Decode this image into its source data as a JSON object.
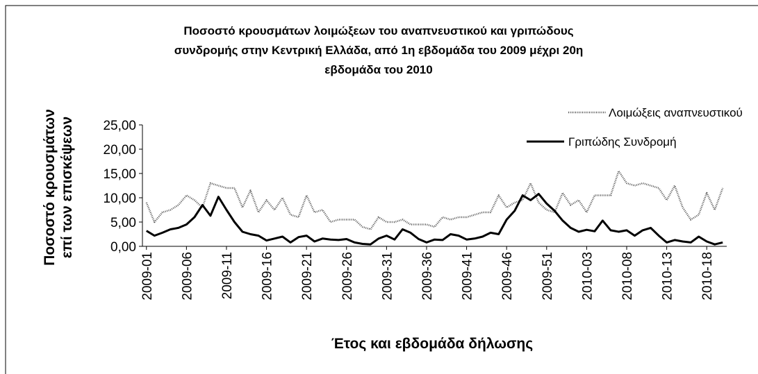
{
  "chart_data": {
    "type": "line",
    "title": [
      "Ποσοστό κρουσμάτων λοιμώξεων του αναπνευστικού και γριπώδους",
      "συνδρομής στην Κεντρική Ελλάδα, από 1η εβδομάδα του 2009 μέχρι 20η",
      "εβδομάδα του 2010"
    ],
    "y_label": [
      "Ποσοστό κρουσμάτων",
      "επί των επισκέψεων"
    ],
    "x_label": "Έτος και εβδομάδα δήλωσης",
    "categories": [
      "2009-01",
      null,
      null,
      null,
      null,
      "2009-06",
      null,
      null,
      null,
      null,
      "2009-11",
      null,
      null,
      null,
      null,
      "2009-16",
      null,
      null,
      null,
      null,
      "2009-21",
      null,
      null,
      null,
      null,
      "2009-26",
      null,
      null,
      null,
      null,
      "2009-31",
      null,
      null,
      null,
      null,
      "2009-36",
      null,
      null,
      null,
      null,
      "2009-41",
      null,
      null,
      null,
      null,
      "2009-46",
      null,
      null,
      null,
      null,
      "2009-51",
      null,
      null,
      null,
      null,
      "2010-03",
      null,
      null,
      null,
      null,
      "2010-08",
      null,
      null,
      null,
      null,
      "2010-13",
      null,
      null,
      null,
      null,
      "2010-18",
      null,
      null
    ],
    "series": [
      {
        "name": "Λοιμώξεις αναπνευστικού",
        "color": "#555555",
        "style": "dotted",
        "values": [
          9,
          5,
          7,
          7.5,
          8.5,
          10.5,
          9.5,
          8,
          13,
          12.5,
          12,
          12,
          8,
          11.5,
          7,
          9.5,
          7.5,
          10,
          6.5,
          6,
          10.5,
          7,
          7.5,
          5,
          5.5,
          5.5,
          5.5,
          4,
          3.5,
          6,
          5,
          5,
          5.5,
          4.5,
          4.5,
          4.5,
          4,
          6,
          5.5,
          6,
          6,
          6.5,
          7,
          7,
          10.5,
          8,
          9,
          9.5,
          13,
          9,
          7.5,
          7,
          11,
          8.5,
          9.5,
          7,
          10.5,
          10.5,
          10.5,
          15.5,
          13,
          12.5,
          13,
          12.5,
          12,
          9.5,
          12.5,
          8,
          5.5,
          6.5,
          11,
          7.5,
          12
        ]
      },
      {
        "name": "Γριπώδης Συνδρομή",
        "color": "#000000",
        "style": "solid",
        "values": [
          3.2,
          2.2,
          2.8,
          3.5,
          3.8,
          4.5,
          6,
          8.5,
          6.3,
          10.2,
          7.5,
          5,
          3,
          2.5,
          2.2,
          1.2,
          1.6,
          2,
          0.8,
          1.9,
          2.2,
          1,
          1.6,
          1.4,
          1.3,
          1.5,
          0.8,
          0.5,
          0.4,
          1.6,
          2.2,
          1.4,
          3.5,
          2.8,
          1.5,
          0.8,
          1.4,
          1.3,
          2.5,
          2.2,
          1.4,
          1.6,
          2,
          2.8,
          2.5,
          5.5,
          7.3,
          10.5,
          9.5,
          10.8,
          8.8,
          7.3,
          5.3,
          3.8,
          3,
          3.4,
          3.1,
          5.3,
          3.3,
          3,
          3.3,
          2.2,
          3.3,
          3.8,
          2.2,
          0.8,
          1.3,
          1,
          0.8,
          2,
          1,
          0.4,
          0.8
        ]
      }
    ],
    "ylim": [
      0,
      25
    ],
    "yticks": [
      {
        "value": 0,
        "label": "0,00"
      },
      {
        "value": 5,
        "label": "5,00"
      },
      {
        "value": 10,
        "label": "10,00"
      },
      {
        "value": 15,
        "label": "15,00"
      },
      {
        "value": 20,
        "label": "20,00"
      },
      {
        "value": 25,
        "label": "25,00"
      }
    ],
    "grid": false,
    "legend": "upper right"
  }
}
